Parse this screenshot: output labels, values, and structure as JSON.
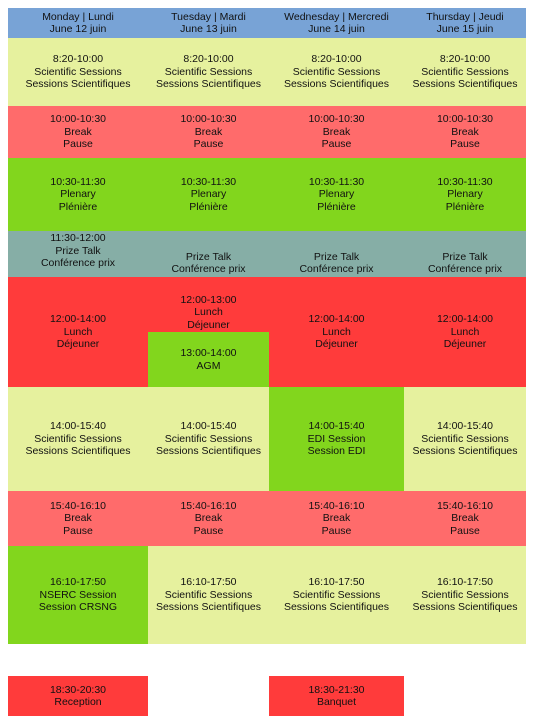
{
  "header": {
    "mon": [
      "Monday | Lundi",
      "June 12 juin"
    ],
    "tue": [
      "Tuesday | Mardi",
      "June 13 juin"
    ],
    "wed": [
      "Wednesday | Mercredi",
      "June 14 juin"
    ],
    "thu": [
      "Thursday | Jeudi",
      "June 15 juin"
    ]
  },
  "sessions_morning": {
    "time": "8:20-10:00",
    "en": "Scientific Sessions",
    "fr": "Sessions Scientifiques"
  },
  "break_morning": {
    "time": "10:00-10:30",
    "en": "Break",
    "fr": "Pause"
  },
  "plenary": {
    "time": "10:30-11:30",
    "en": "Plenary",
    "fr": "Plénière"
  },
  "prize_mon": {
    "time": "11:30-12:00",
    "en": "Prize Talk",
    "fr": "Conférence prix"
  },
  "prize": {
    "en": "Prize Talk",
    "fr": "Conférence prix"
  },
  "lunch": {
    "time": "12:00-14:00",
    "en": "Lunch",
    "fr": "Déjeuner"
  },
  "lunch_tue": {
    "time": "12:00-13:00",
    "en": "Lunch",
    "fr": "Déjeuner"
  },
  "agm": {
    "time": "13:00-14:00",
    "label": "AGM"
  },
  "sessions_afternoon": {
    "time": "14:00-15:40",
    "en": "Scientific Sessions",
    "fr": "Sessions Scientifiques"
  },
  "edi": {
    "time": "14:00-15:40",
    "en": "EDI Session",
    "fr": "Session EDI"
  },
  "break_afternoon": {
    "time": "15:40-16:10",
    "en": "Break",
    "fr": "Pause"
  },
  "nserc": {
    "time": "16:10-17:50",
    "en": "NSERC Session",
    "fr": "Session CRSNG"
  },
  "sessions_late": {
    "time": "16:10-17:50",
    "en": "Scientific Sessions",
    "fr": "Sessions Scientifiques"
  },
  "reception": {
    "time": "18:30-20:30",
    "label": "Reception"
  },
  "banquet": {
    "time": "18:30-21:30",
    "label": "Banquet"
  },
  "colors": {
    "header": "#78a3d6",
    "scientific": "#e6f19e",
    "break": "#ff6b6b",
    "plenary": "#82d61d",
    "prize": "#86aea6",
    "lunch": "#ff3b3b"
  }
}
